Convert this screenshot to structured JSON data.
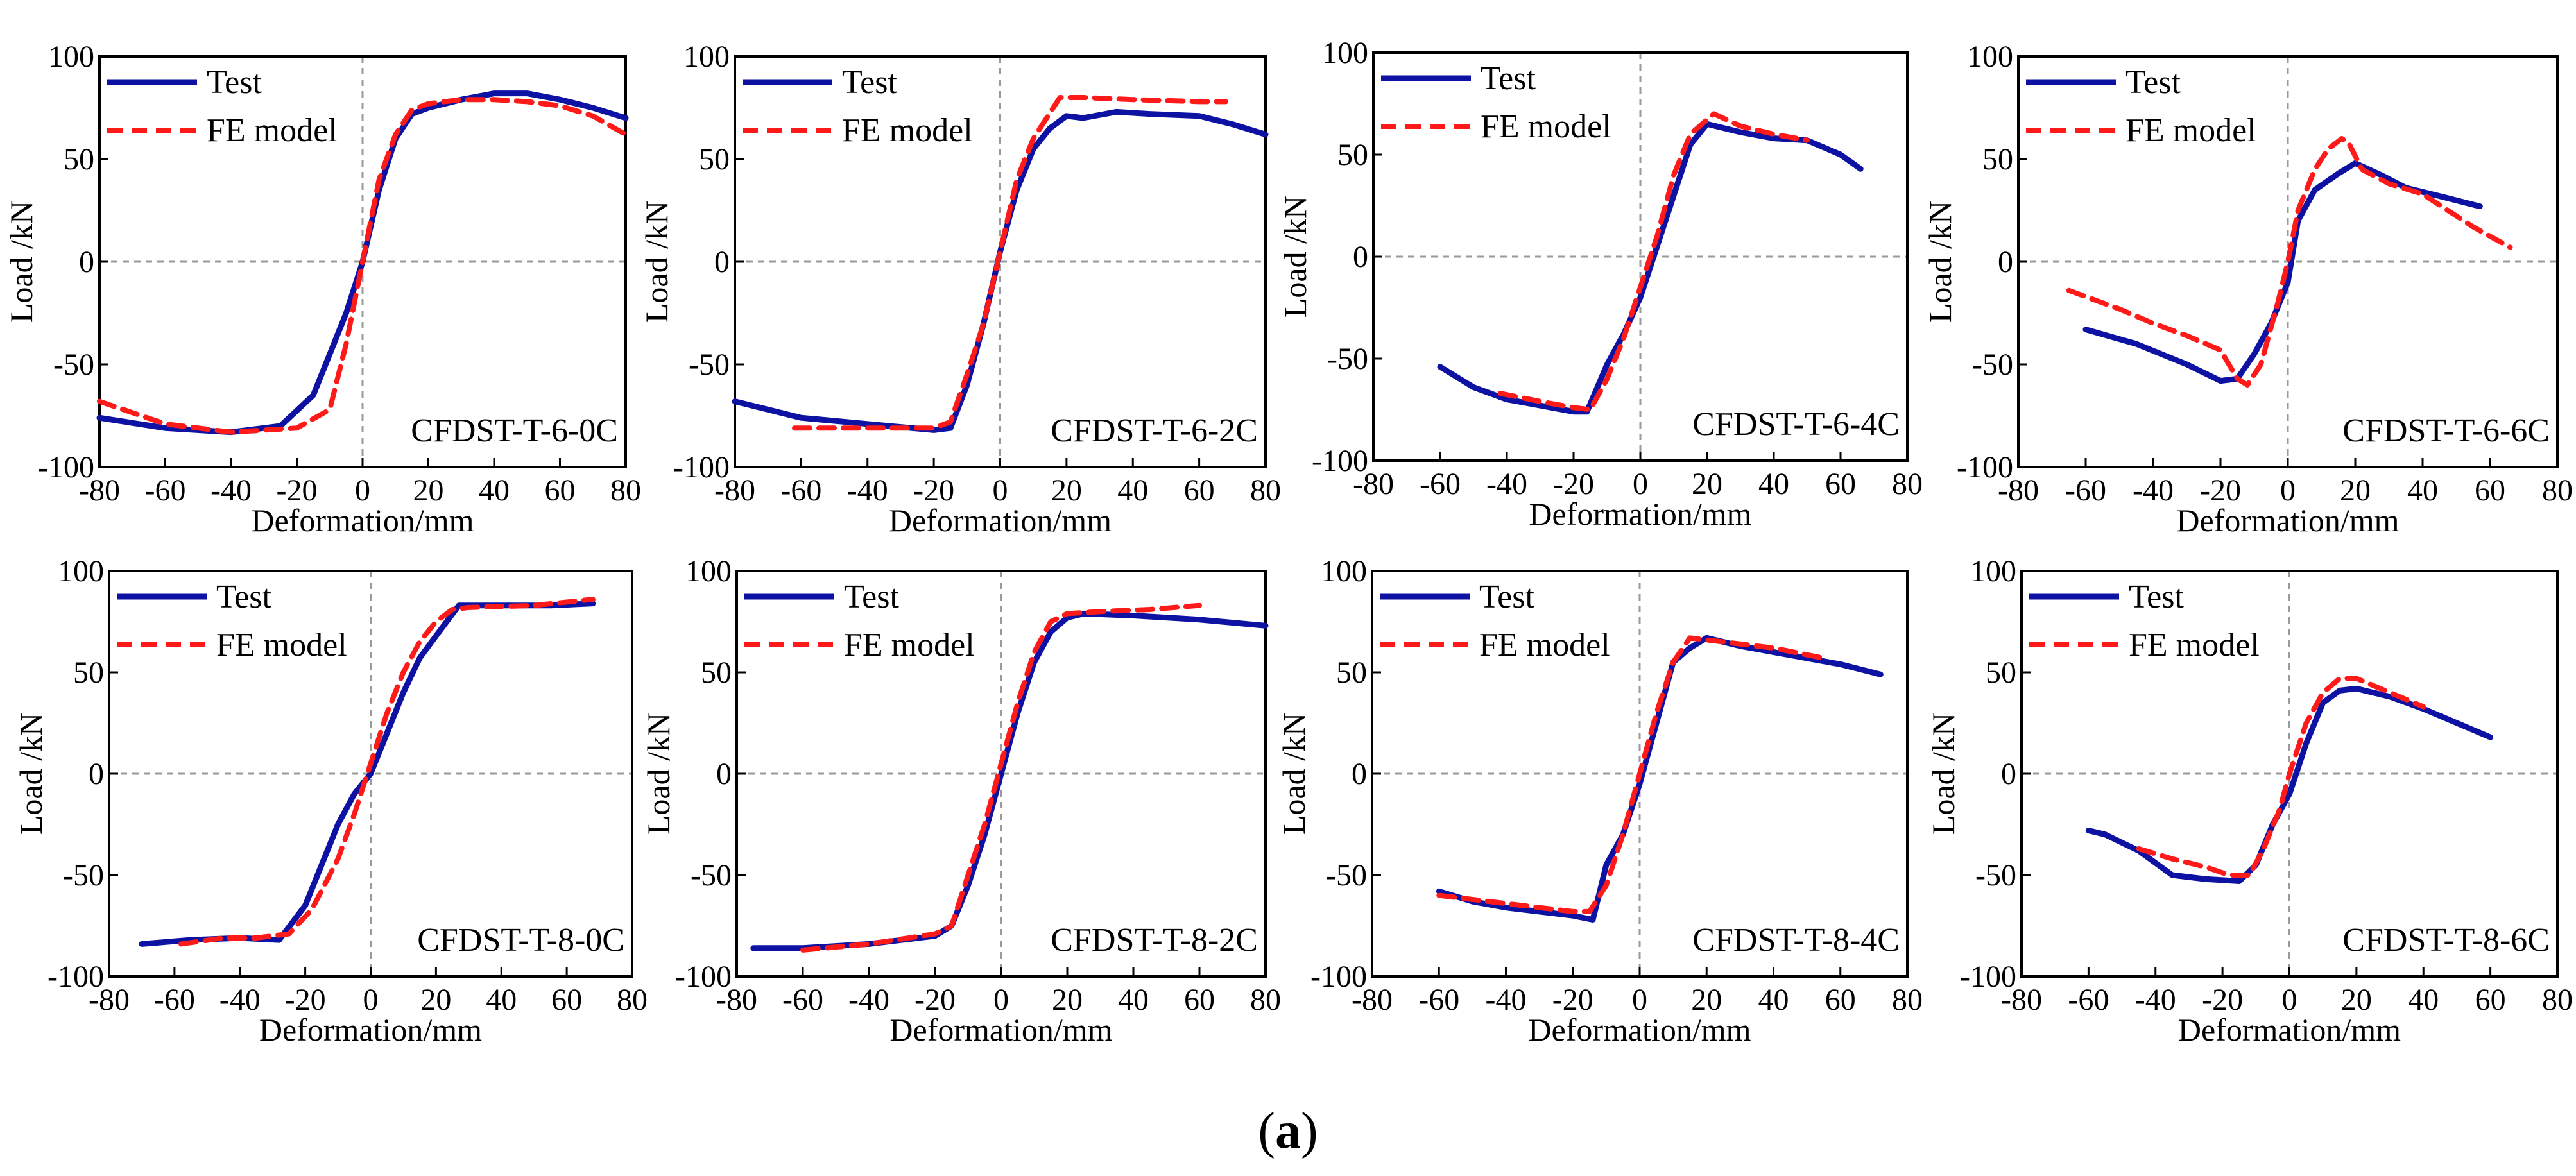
{
  "caption": {
    "open": "(",
    "label": "a",
    "close": ")"
  },
  "colors": {
    "test": "#0d12a3",
    "fe": "#ff1a1a",
    "axis": "#000000",
    "zero": "#9a9a9a"
  },
  "chart_data": [
    {
      "type": "line",
      "id": "CFDST-T-6-0C",
      "annotation": "CFDST-T-6-0C",
      "xlabel": "Deformation/mm",
      "ylabel": "Load /kN",
      "xlim": [
        -80,
        80
      ],
      "ylim": [
        -100,
        100
      ],
      "xticks": [
        -80,
        -60,
        -40,
        -20,
        0,
        20,
        40,
        60,
        80
      ],
      "yticks": [
        100,
        50,
        0,
        -50,
        -100
      ],
      "legend": [
        "Test",
        "FE model"
      ],
      "series": [
        {
          "name": "Test",
          "x": [
            -80,
            -60,
            -40,
            -25,
            -15,
            -10,
            -5,
            0,
            5,
            10,
            15,
            20,
            30,
            40,
            50,
            60,
            70,
            80
          ],
          "y": [
            -76,
            -81,
            -83,
            -80,
            -65,
            -45,
            -25,
            0,
            35,
            60,
            72,
            75,
            79,
            82,
            82,
            79,
            75,
            70
          ]
        },
        {
          "name": "FE model",
          "x": [
            -80,
            -60,
            -40,
            -20,
            -10,
            -5,
            0,
            5,
            10,
            15,
            20,
            30,
            40,
            50,
            60,
            70,
            80
          ],
          "y": [
            -68,
            -79,
            -83,
            -81,
            -72,
            -40,
            0,
            40,
            62,
            74,
            77,
            79,
            79,
            78,
            76,
            71,
            62
          ]
        }
      ]
    },
    {
      "type": "line",
      "id": "CFDST-T-6-2C",
      "annotation": "CFDST-T-6-2C",
      "xlabel": "Deformation/mm",
      "ylabel": "Load /kN",
      "xlim": [
        -80,
        80
      ],
      "ylim": [
        -100,
        100
      ],
      "xticks": [
        -80,
        -60,
        -40,
        -20,
        0,
        20,
        40,
        60,
        80
      ],
      "yticks": [
        100,
        50,
        0,
        -50,
        -100
      ],
      "legend": [
        "Test",
        "FE model"
      ],
      "series": [
        {
          "name": "Test",
          "x": [
            -80,
            -60,
            -40,
            -20,
            -15,
            -10,
            -5,
            0,
            5,
            10,
            15,
            20,
            25,
            35,
            45,
            60,
            70,
            80
          ],
          "y": [
            -68,
            -76,
            -79,
            -82,
            -81,
            -60,
            -30,
            5,
            35,
            55,
            65,
            71,
            70,
            73,
            72,
            71,
            67,
            62
          ]
        },
        {
          "name": "FE model",
          "x": [
            -62,
            -40,
            -20,
            -15,
            -10,
            -5,
            0,
            5,
            10,
            18,
            25,
            40,
            60,
            68
          ],
          "y": [
            -81,
            -81,
            -81,
            -78,
            -55,
            -30,
            5,
            40,
            60,
            80,
            80,
            79,
            78,
            78
          ]
        }
      ]
    },
    {
      "type": "line",
      "id": "CFDST-T-6-4C",
      "annotation": "CFDST-T-6-4C",
      "xlabel": "Deformation/mm",
      "ylabel": "Load /kN",
      "xlim": [
        -80,
        80
      ],
      "ylim": [
        -100,
        100
      ],
      "xticks": [
        -80,
        -60,
        -40,
        -20,
        0,
        20,
        40,
        60,
        80
      ],
      "yticks": [
        100,
        50,
        0,
        -50,
        -100
      ],
      "legend": [
        "Test",
        "FE model"
      ],
      "series": [
        {
          "name": "Test",
          "x": [
            -60,
            -50,
            -40,
            -30,
            -20,
            -16,
            -10,
            -5,
            0,
            5,
            10,
            15,
            20,
            30,
            40,
            50,
            60,
            66
          ],
          "y": [
            -54,
            -64,
            -70,
            -73,
            -76,
            -76,
            -53,
            -38,
            -20,
            5,
            30,
            55,
            65,
            61,
            58,
            57,
            50,
            43
          ]
        },
        {
          "name": "FE model",
          "x": [
            -42,
            -30,
            -20,
            -15,
            -10,
            -5,
            0,
            5,
            10,
            15,
            22,
            30,
            40,
            50
          ],
          "y": [
            -67,
            -71,
            -74,
            -75,
            -60,
            -40,
            -15,
            10,
            40,
            60,
            70,
            64,
            60,
            57
          ]
        }
      ]
    },
    {
      "type": "line",
      "id": "CFDST-T-6-6C",
      "annotation": "CFDST-T-6-6C",
      "xlabel": "Deformation/mm",
      "ylabel": "Load /kN",
      "xlim": [
        -80,
        80
      ],
      "ylim": [
        -100,
        100
      ],
      "xticks": [
        -80,
        -60,
        -40,
        -20,
        0,
        20,
        40,
        60,
        80
      ],
      "yticks": [
        100,
        50,
        0,
        -50,
        -100
      ],
      "legend": [
        "Test",
        "FE model"
      ],
      "series": [
        {
          "name": "Test",
          "x": [
            -60,
            -45,
            -30,
            -20,
            -15,
            -10,
            -5,
            0,
            3,
            8,
            15,
            20,
            28,
            35,
            45,
            57
          ],
          "y": [
            -33,
            -40,
            -50,
            -58,
            -57,
            -45,
            -30,
            -10,
            20,
            35,
            43,
            48,
            42,
            36,
            32,
            27
          ]
        },
        {
          "name": "FE model",
          "x": [
            -65,
            -50,
            -40,
            -30,
            -20,
            -15,
            -12,
            -8,
            -3,
            0,
            3,
            8,
            12,
            16,
            18,
            22,
            30,
            40,
            55,
            66
          ],
          "y": [
            -14,
            -23,
            -30,
            -36,
            -43,
            -57,
            -60,
            -50,
            -20,
            0,
            25,
            45,
            55,
            60,
            58,
            45,
            38,
            33,
            17,
            7
          ]
        }
      ]
    },
    {
      "type": "line",
      "id": "CFDST-T-8-0C",
      "annotation": "CFDST-T-8-0C",
      "xlabel": "Deformation/mm",
      "ylabel": "Load /kN",
      "xlim": [
        -80,
        80
      ],
      "ylim": [
        -100,
        100
      ],
      "xticks": [
        -80,
        -60,
        -40,
        -20,
        0,
        20,
        40,
        60,
        80
      ],
      "yticks": [
        100,
        50,
        0,
        -50,
        -100
      ],
      "legend": [
        "Test",
        "FE model"
      ],
      "series": [
        {
          "name": "Test",
          "x": [
            -70,
            -55,
            -40,
            -28,
            -20,
            -15,
            -10,
            -5,
            0,
            5,
            10,
            15,
            20,
            27,
            40,
            55,
            68
          ],
          "y": [
            -84,
            -82,
            -81,
            -82,
            -65,
            -45,
            -25,
            -10,
            0,
            20,
            40,
            57,
            68,
            83,
            83,
            83,
            84
          ]
        },
        {
          "name": "FE model",
          "x": [
            -58,
            -45,
            -35,
            -25,
            -18,
            -10,
            -5,
            0,
            5,
            10,
            15,
            20,
            25,
            30,
            50,
            68
          ],
          "y": [
            -84,
            -81,
            -81,
            -79,
            -67,
            -42,
            -20,
            5,
            30,
            50,
            65,
            75,
            81,
            82,
            83,
            86
          ]
        }
      ]
    },
    {
      "type": "line",
      "id": "CFDST-T-8-2C",
      "annotation": "CFDST-T-8-2C",
      "xlabel": "Deformation/mm",
      "ylabel": "Load /kN",
      "xlim": [
        -80,
        80
      ],
      "ylim": [
        -100,
        100
      ],
      "xticks": [
        -80,
        -60,
        -40,
        -20,
        0,
        20,
        40,
        60,
        80
      ],
      "yticks": [
        100,
        50,
        0,
        -50,
        -100
      ],
      "legend": [
        "Test",
        "FE model"
      ],
      "series": [
        {
          "name": "Test",
          "x": [
            -75,
            -60,
            -40,
            -20,
            -15,
            -10,
            -5,
            0,
            5,
            10,
            15,
            20,
            25,
            40,
            60,
            80
          ],
          "y": [
            -86,
            -86,
            -84,
            -80,
            -75,
            -55,
            -30,
            0,
            30,
            55,
            70,
            77,
            79,
            78,
            76,
            73
          ]
        },
        {
          "name": "FE model",
          "x": [
            -60,
            -40,
            -20,
            -15,
            -10,
            -5,
            0,
            5,
            10,
            15,
            20,
            30,
            45,
            60
          ],
          "y": [
            -87,
            -84,
            -79,
            -75,
            -50,
            -25,
            5,
            35,
            60,
            75,
            79,
            80,
            81,
            83
          ]
        }
      ]
    },
    {
      "type": "line",
      "id": "CFDST-T-8-4C",
      "annotation": "CFDST-T-8-4C",
      "xlabel": "Deformation/mm",
      "ylabel": "Load /kN",
      "xlim": [
        -80,
        80
      ],
      "ylim": [
        -100,
        100
      ],
      "xticks": [
        -80,
        -60,
        -40,
        -20,
        0,
        20,
        40,
        60,
        80
      ],
      "yticks": [
        100,
        50,
        0,
        -50,
        -100
      ],
      "legend": [
        "Test",
        "FE model"
      ],
      "series": [
        {
          "name": "Test",
          "x": [
            -60,
            -50,
            -40,
            -30,
            -20,
            -14,
            -10,
            -5,
            0,
            5,
            10,
            15,
            20,
            30,
            40,
            50,
            60,
            72
          ],
          "y": [
            -58,
            -63,
            -66,
            -68,
            -70,
            -72,
            -45,
            -30,
            -5,
            25,
            55,
            62,
            67,
            63,
            60,
            57,
            54,
            49
          ]
        },
        {
          "name": "FE model",
          "x": [
            -60,
            -45,
            -30,
            -20,
            -15,
            -10,
            -5,
            0,
            5,
            10,
            15,
            25,
            40,
            55
          ],
          "y": [
            -60,
            -63,
            -66,
            -68,
            -68,
            -55,
            -30,
            0,
            30,
            55,
            67,
            65,
            62,
            57
          ]
        }
      ]
    },
    {
      "type": "line",
      "id": "CFDST-T-8-6C",
      "annotation": "CFDST-T-8-6C",
      "xlabel": "Deformation/mm",
      "ylabel": "Load /kN",
      "xlim": [
        -80,
        80
      ],
      "ylim": [
        -100,
        100
      ],
      "xticks": [
        -80,
        -60,
        -40,
        -20,
        0,
        20,
        40,
        60,
        80
      ],
      "yticks": [
        100,
        50,
        0,
        -50,
        -100
      ],
      "legend": [
        "Test",
        "FE model"
      ],
      "series": [
        {
          "name": "Test",
          "x": [
            -60,
            -55,
            -45,
            -35,
            -25,
            -15,
            -10,
            -5,
            0,
            5,
            10,
            15,
            20,
            30,
            40,
            50,
            60
          ],
          "y": [
            -28,
            -30,
            -38,
            -50,
            -52,
            -53,
            -45,
            -25,
            -10,
            15,
            35,
            41,
            42,
            38,
            32,
            25,
            18
          ]
        },
        {
          "name": "FE model",
          "x": [
            -45,
            -35,
            -25,
            -18,
            -12,
            -8,
            -3,
            0,
            5,
            10,
            15,
            20,
            30,
            40
          ],
          "y": [
            -37,
            -42,
            -46,
            -50,
            -50,
            -38,
            -18,
            0,
            25,
            40,
            47,
            47,
            40,
            33
          ]
        }
      ]
    }
  ]
}
